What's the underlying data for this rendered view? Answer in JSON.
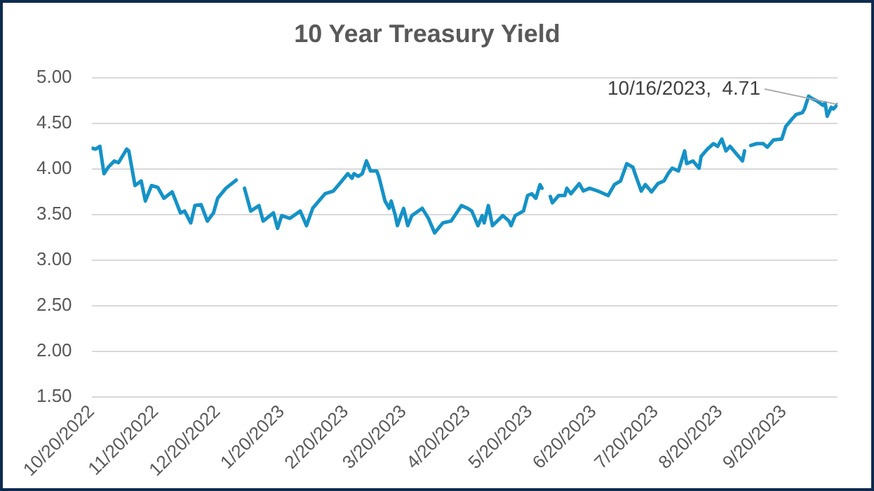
{
  "chart_data": {
    "type": "line",
    "title": "10 Year Treasury Yield",
    "x": [
      "2022-10-20",
      "2022-10-22",
      "2022-10-24",
      "2022-10-26",
      "2022-10-28",
      "2022-10-31",
      "2022-11-02",
      "2022-11-06",
      "2022-11-07",
      "2022-11-10",
      "2022-11-13",
      "2022-11-15",
      "2022-11-18",
      "2022-11-21",
      "2022-11-24",
      "2022-11-28",
      "2022-12-02",
      "2022-12-04",
      "2022-12-07",
      "2022-12-09",
      "2022-12-12",
      "2022-12-15",
      "2022-12-18",
      "2022-12-20",
      "2022-12-24",
      "2022-12-29",
      "2022-12-31",
      "2023-01-02",
      "2023-01-05",
      "2023-01-09",
      "2023-01-11",
      "2023-01-16",
      "2023-01-18",
      "2023-01-20",
      "2023-01-24",
      "2023-01-29",
      "2023-02-01",
      "2023-02-04",
      "2023-02-10",
      "2023-02-14",
      "2023-02-17",
      "2023-02-21",
      "2023-02-23",
      "2023-02-24",
      "2023-02-26",
      "2023-02-28",
      "2023-03-02",
      "2023-03-04",
      "2023-03-07",
      "2023-03-08",
      "2023-03-11",
      "2023-03-13",
      "2023-03-14",
      "2023-03-16",
      "2023-03-17",
      "2023-03-20",
      "2023-03-22",
      "2023-03-24",
      "2023-03-29",
      "2023-04-01",
      "2023-04-04",
      "2023-04-08",
      "2023-04-12",
      "2023-04-17",
      "2023-04-20",
      "2023-04-22",
      "2023-04-25",
      "2023-04-27",
      "2023-04-28",
      "2023-04-30",
      "2023-05-02",
      "2023-05-07",
      "2023-05-10",
      "2023-05-11",
      "2023-05-13",
      "2023-05-17",
      "2023-05-19",
      "2023-05-21",
      "2023-05-23",
      "2023-05-25",
      "2023-05-26",
      "2023-05-28",
      "2023-05-30",
      "2023-05-31",
      "2023-06-03",
      "2023-06-06",
      "2023-06-07",
      "2023-06-09",
      "2023-06-13",
      "2023-06-15",
      "2023-06-18",
      "2023-06-22",
      "2023-06-25",
      "2023-06-27",
      "2023-06-30",
      "2023-07-03",
      "2023-07-06",
      "2023-07-09",
      "2023-07-10",
      "2023-07-13",
      "2023-07-15",
      "2023-07-18",
      "2023-07-21",
      "2023-07-24",
      "2023-07-26",
      "2023-07-28",
      "2023-07-31",
      "2023-08-03",
      "2023-08-04",
      "2023-08-07",
      "2023-08-10",
      "2023-08-11",
      "2023-08-14",
      "2023-08-17",
      "2023-08-19",
      "2023-08-21",
      "2023-08-23",
      "2023-08-25",
      "2023-08-28",
      "2023-08-31",
      "2023-09-01",
      "2023-09-03",
      "2023-09-04",
      "2023-09-07",
      "2023-09-10",
      "2023-09-12",
      "2023-09-15",
      "2023-09-19",
      "2023-09-21",
      "2023-09-24",
      "2023-09-26",
      "2023-09-29",
      "2023-09-30",
      "2023-10-02",
      "2023-10-04",
      "2023-10-06",
      "2023-10-09",
      "2023-10-10",
      "2023-10-11",
      "2023-10-13",
      "2023-10-14",
      "2023-10-16"
    ],
    "series": [
      {
        "color": "#1592c6",
        "values": [
          4.23,
          4.22,
          4.25,
          3.95,
          4.02,
          4.09,
          4.07,
          4.22,
          4.2,
          3.82,
          3.87,
          3.65,
          3.82,
          3.8,
          3.68,
          3.75,
          3.52,
          3.54,
          3.41,
          3.6,
          3.61,
          3.43,
          3.52,
          3.68,
          3.79,
          3.88,
          null,
          3.79,
          3.54,
          3.6,
          3.43,
          3.52,
          3.35,
          3.49,
          3.46,
          3.54,
          3.38,
          3.57,
          3.73,
          3.76,
          3.84,
          3.95,
          3.9,
          3.95,
          3.92,
          3.95,
          4.09,
          3.98,
          3.98,
          3.92,
          3.65,
          3.57,
          3.65,
          3.49,
          3.38,
          3.57,
          3.38,
          3.49,
          3.57,
          3.46,
          3.3,
          3.41,
          3.43,
          3.6,
          3.57,
          3.54,
          3.38,
          3.49,
          3.41,
          3.6,
          3.38,
          3.49,
          3.43,
          3.38,
          3.49,
          3.54,
          3.71,
          3.73,
          3.68,
          3.83,
          3.79,
          null,
          3.7,
          3.63,
          3.71,
          3.71,
          3.79,
          3.73,
          3.84,
          3.76,
          3.79,
          3.76,
          3.73,
          3.71,
          3.83,
          3.87,
          4.06,
          4.02,
          3.95,
          3.76,
          3.83,
          3.75,
          3.84,
          3.87,
          3.95,
          4.01,
          3.98,
          4.2,
          4.06,
          4.09,
          4.01,
          4.14,
          4.22,
          4.28,
          4.25,
          4.33,
          4.2,
          4.25,
          4.17,
          4.09,
          4.2,
          null,
          4.26,
          4.28,
          4.28,
          4.24,
          4.32,
          4.33,
          4.47,
          4.55,
          4.6,
          4.62,
          4.66,
          4.8,
          4.77,
          4.75,
          4.7,
          4.73,
          4.58,
          4.68,
          4.66,
          4.71
        ]
      }
    ],
    "xlim": [
      "2022-10-20",
      "2023-10-16"
    ],
    "xticks": [
      {
        "value": "2022-10-20",
        "label": "10/20/2022"
      },
      {
        "value": "2022-11-20",
        "label": "11/20/2022"
      },
      {
        "value": "2022-12-20",
        "label": "12/20/2022"
      },
      {
        "value": "2023-01-20",
        "label": "1/20/2023"
      },
      {
        "value": "2023-02-20",
        "label": "2/20/2023"
      },
      {
        "value": "2023-03-20",
        "label": "3/20/2023"
      },
      {
        "value": "2023-04-20",
        "label": "4/20/2023"
      },
      {
        "value": "2023-05-20",
        "label": "5/20/2023"
      },
      {
        "value": "2023-06-20",
        "label": "6/20/2023"
      },
      {
        "value": "2023-07-20",
        "label": "7/20/2023"
      },
      {
        "value": "2023-08-20",
        "label": "8/20/2023"
      },
      {
        "value": "2023-09-20",
        "label": "9/20/2023"
      }
    ],
    "ylim": [
      1.5,
      5
    ],
    "yticks": [
      {
        "value": 1.5,
        "label": "1.50"
      },
      {
        "value": 2,
        "label": "2.00"
      },
      {
        "value": 2.5,
        "label": "2.50"
      },
      {
        "value": 3,
        "label": "3.00"
      },
      {
        "value": 3.5,
        "label": "3.50"
      },
      {
        "value": 4,
        "label": "4.00"
      },
      {
        "value": 4.5,
        "label": "4.50"
      },
      {
        "value": 5,
        "label": "5.00"
      }
    ],
    "grid": "y",
    "legend": false,
    "marker": "none",
    "line_style": "solid",
    "annotations": [
      {
        "text": "10/16/2023,  4.71",
        "x": "2023-10-16",
        "y": 4.71
      }
    ]
  }
}
